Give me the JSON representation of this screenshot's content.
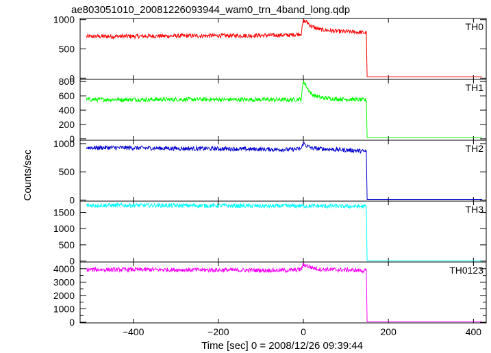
{
  "chart_data": {
    "type": "line",
    "title": "ae803051010_20081226093944_wam0_trn_4band_long.qdp",
    "xlabel": "Time [sec] 0 = 2008/12/26 09:39:44",
    "ylabel": "Counts/sec",
    "xlim": [
      -525,
      430
    ],
    "xticks": [
      -400,
      -200,
      0,
      200,
      400
    ],
    "xtick_labels": [
      "−400",
      "−200",
      "0",
      "200",
      "400"
    ],
    "panels": [
      {
        "name": "TH0",
        "color": "#ff0000",
        "ylim": [
          -20,
          1020
        ],
        "yticks": [
          0,
          500,
          1000
        ],
        "points": [
          [
            -510,
            712
          ],
          [
            -400,
            716
          ],
          [
            -300,
            722
          ],
          [
            -200,
            726
          ],
          [
            -100,
            730
          ],
          [
            -30,
            738
          ],
          [
            -5,
            760
          ],
          [
            0,
            985
          ],
          [
            8,
            960
          ],
          [
            20,
            880
          ],
          [
            40,
            830
          ],
          [
            80,
            800
          ],
          [
            120,
            790
          ],
          [
            148,
            775
          ],
          [
            150,
            25
          ],
          [
            420,
            25
          ]
        ]
      },
      {
        "name": "TH1",
        "color": "#00ff00",
        "ylim": [
          -20,
          830
        ],
        "yticks": [
          0,
          200,
          400,
          600,
          800
        ],
        "points": [
          [
            -510,
            548
          ],
          [
            -400,
            548
          ],
          [
            -300,
            550
          ],
          [
            -200,
            548
          ],
          [
            -100,
            548
          ],
          [
            -30,
            545
          ],
          [
            -5,
            555
          ],
          [
            0,
            815
          ],
          [
            10,
            700
          ],
          [
            20,
            620
          ],
          [
            40,
            575
          ],
          [
            80,
            555
          ],
          [
            120,
            550
          ],
          [
            148,
            540
          ],
          [
            150,
            15
          ],
          [
            420,
            15
          ]
        ]
      },
      {
        "name": "TH2",
        "color": "#0000cc",
        "ylim": [
          -20,
          1060
        ],
        "yticks": [
          0,
          500,
          1000
        ],
        "points": [
          [
            -510,
            930
          ],
          [
            -400,
            925
          ],
          [
            -300,
            915
          ],
          [
            -200,
            910
          ],
          [
            -100,
            900
          ],
          [
            -30,
            895
          ],
          [
            -5,
            910
          ],
          [
            0,
            1010
          ],
          [
            8,
            960
          ],
          [
            20,
            920
          ],
          [
            60,
            900
          ],
          [
            120,
            880
          ],
          [
            148,
            860
          ],
          [
            150,
            10
          ],
          [
            420,
            10
          ]
        ]
      },
      {
        "name": "TH3",
        "color": "#00ffff",
        "ylim": [
          -30,
          1850
        ],
        "yticks": [
          0,
          500,
          1000,
          1500
        ],
        "points": [
          [
            -510,
            1720
          ],
          [
            -400,
            1720
          ],
          [
            -300,
            1715
          ],
          [
            -200,
            1710
          ],
          [
            -100,
            1700
          ],
          [
            -30,
            1700
          ],
          [
            0,
            1705
          ],
          [
            50,
            1700
          ],
          [
            100,
            1690
          ],
          [
            148,
            1685
          ],
          [
            150,
            10
          ],
          [
            420,
            10
          ]
        ]
      },
      {
        "name": "TH0123",
        "color": "#ff00ff",
        "ylim": [
          -50,
          4500
        ],
        "yticks": [
          0,
          500,
          1000,
          1500,
          2000,
          2500,
          3000,
          3500,
          4000
        ],
        "ytick_labels": [
          0,
          1000,
          2000,
          3000,
          4000
        ],
        "points": [
          [
            -510,
            3930
          ],
          [
            -400,
            3930
          ],
          [
            -300,
            3920
          ],
          [
            -200,
            3900
          ],
          [
            -100,
            3880
          ],
          [
            -30,
            3880
          ],
          [
            -5,
            3950
          ],
          [
            0,
            4320
          ],
          [
            10,
            4200
          ],
          [
            20,
            4080
          ],
          [
            40,
            3960
          ],
          [
            80,
            3920
          ],
          [
            120,
            3890
          ],
          [
            148,
            3850
          ],
          [
            150,
            30
          ],
          [
            420,
            30
          ]
        ]
      }
    ]
  }
}
